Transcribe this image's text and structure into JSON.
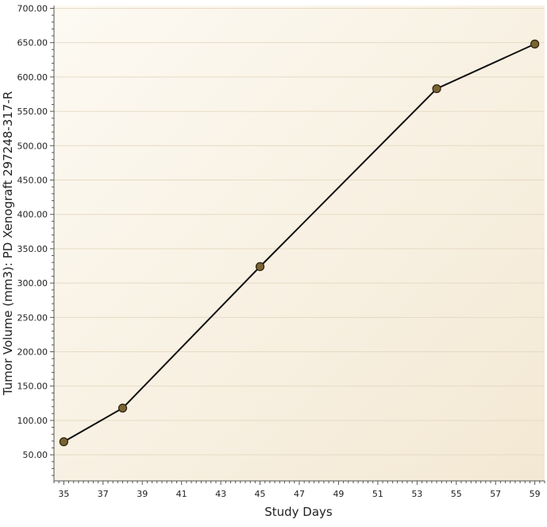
{
  "chart_data": {
    "type": "line",
    "title": "",
    "xlabel": "Study Days",
    "ylabel": "Tumor Volume (mm3): PD Xenograft 297248-317-R",
    "x": [
      35,
      38,
      45,
      54,
      59
    ],
    "values": [
      69,
      118,
      324,
      583,
      648
    ],
    "xlim": [
      34.5,
      59.5
    ],
    "ylim": [
      12,
      704
    ],
    "x_ticks": [
      35,
      37,
      39,
      41,
      43,
      45,
      47,
      49,
      51,
      53,
      55,
      57,
      59
    ],
    "x_tick_labels": [
      "35",
      "37",
      "39",
      "41",
      "43",
      "45",
      "47",
      "49",
      "51",
      "53",
      "55",
      "57",
      "59"
    ],
    "y_ticks": [
      50,
      100,
      150,
      200,
      250,
      300,
      350,
      400,
      450,
      500,
      550,
      600,
      650,
      700
    ],
    "y_tick_labels": [
      "50.00",
      "100.00",
      "150.00",
      "200.00",
      "250.00",
      "300.00",
      "350.00",
      "400.00",
      "450.00",
      "500.00",
      "550.00",
      "600.00",
      "650.00",
      "700.00"
    ],
    "grid": true,
    "legend": "none",
    "colors": {
      "plot_background_light": "#fdfaf3",
      "plot_background_dark": "#f3e8d3",
      "gridline": "#e6dac4",
      "axis": "#555555",
      "line": "#111111",
      "marker_fill": "#7a6431",
      "marker_stroke": "#2b220f"
    }
  }
}
